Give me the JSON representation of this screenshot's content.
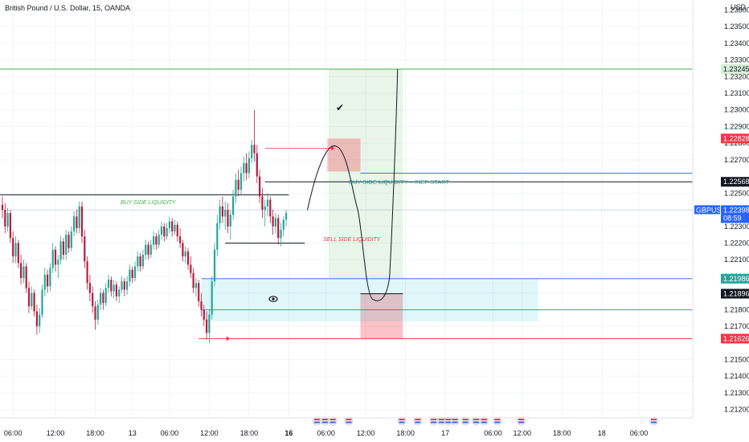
{
  "header": {
    "title": "British Pound / U.S. Dollar, 15, OANDA",
    "currency": "USD"
  },
  "chart_data": {
    "type": "candlestick",
    "symbol": "GBPUSD",
    "ylim": [
      1.2115,
      1.2366
    ],
    "y_ticks": [
      "1.23600",
      "1.23500",
      "1.23400",
      "1.23300",
      "1.23200",
      "1.23100",
      "1.23000",
      "1.22900",
      "1.22800",
      "1.22700",
      "1.22500",
      "1.22400",
      "1.22300",
      "1.22200",
      "1.22100",
      "1.22000",
      "1.21900",
      "1.21800",
      "1.21700",
      "1.21500",
      "1.21400",
      "1.21300",
      "1.21200"
    ],
    "x_ticks": [
      {
        "label": "06:00",
        "i": 4
      },
      {
        "label": "12:00",
        "i": 20
      },
      {
        "label": "18:00",
        "i": 35
      },
      {
        "label": "13",
        "i": 49
      },
      {
        "label": "06:00",
        "i": 63
      },
      {
        "label": "12:00",
        "i": 78
      },
      {
        "label": "18:00",
        "i": 93
      },
      {
        "label": "16",
        "i": 108
      },
      {
        "label": "06:00",
        "i": 122
      },
      {
        "label": "12:00",
        "i": 137
      },
      {
        "label": "18:00",
        "i": 152
      },
      {
        "label": "17",
        "i": 167
      },
      {
        "label": "06:00",
        "i": 185
      },
      {
        "label": "12:00",
        "i": 196
      },
      {
        "label": "18:00",
        "i": 211
      },
      {
        "label": "18",
        "i": 226
      },
      {
        "label": "06:00",
        "i": 240
      }
    ],
    "candles": [
      [
        1.2243,
        1.2248,
        1.2235,
        1.224
      ],
      [
        1.224,
        1.2244,
        1.2226,
        1.223
      ],
      [
        1.223,
        1.2241,
        1.2227,
        1.2238
      ],
      [
        1.2238,
        1.224,
        1.222,
        1.2223
      ],
      [
        1.2223,
        1.2227,
        1.2208,
        1.2212
      ],
      [
        1.2212,
        1.2224,
        1.2208,
        1.222
      ],
      [
        1.222,
        1.2222,
        1.2205,
        1.2208
      ],
      [
        1.2208,
        1.2213,
        1.2195,
        1.2199
      ],
      [
        1.2199,
        1.221,
        1.2196,
        1.2206
      ],
      [
        1.2206,
        1.2208,
        1.219,
        1.2193
      ],
      [
        1.2193,
        1.2197,
        1.2178,
        1.2182
      ],
      [
        1.2182,
        1.2194,
        1.218,
        1.219
      ],
      [
        1.219,
        1.2192,
        1.2176,
        1.2179
      ],
      [
        1.2179,
        1.2183,
        1.2165,
        1.217
      ],
      [
        1.217,
        1.2181,
        1.2166,
        1.2177
      ],
      [
        1.2177,
        1.2195,
        1.2175,
        1.2192
      ],
      [
        1.2192,
        1.2205,
        1.2188,
        1.2201
      ],
      [
        1.2201,
        1.2204,
        1.219,
        1.2194
      ],
      [
        1.2194,
        1.2208,
        1.2191,
        1.2205
      ],
      [
        1.2205,
        1.222,
        1.2202,
        1.2216
      ],
      [
        1.2216,
        1.2218,
        1.2203,
        1.2207
      ],
      [
        1.2207,
        1.2213,
        1.2199,
        1.221
      ],
      [
        1.221,
        1.2224,
        1.2207,
        1.2221
      ],
      [
        1.2221,
        1.2223,
        1.221,
        1.2213
      ],
      [
        1.2213,
        1.2228,
        1.221,
        1.2225
      ],
      [
        1.2225,
        1.2227,
        1.2214,
        1.2217
      ],
      [
        1.2217,
        1.223,
        1.2215,
        1.2227
      ],
      [
        1.2227,
        1.2239,
        1.2224,
        1.2236
      ],
      [
        1.2236,
        1.224,
        1.2226,
        1.2229
      ],
      [
        1.2229,
        1.2245,
        1.2226,
        1.2242
      ],
      [
        1.2242,
        1.2245,
        1.222,
        1.2224
      ],
      [
        1.2224,
        1.2228,
        1.2205,
        1.2209
      ],
      [
        1.2209,
        1.2212,
        1.2192,
        1.2196
      ],
      [
        1.2196,
        1.2201,
        1.2185,
        1.219
      ],
      [
        1.219,
        1.2194,
        1.2178,
        1.2182
      ],
      [
        1.2182,
        1.2185,
        1.2168,
        1.2174
      ],
      [
        1.2174,
        1.2186,
        1.2171,
        1.2183
      ],
      [
        1.2183,
        1.2193,
        1.218,
        1.219
      ],
      [
        1.219,
        1.2192,
        1.218,
        1.2184
      ],
      [
        1.2184,
        1.2196,
        1.2182,
        1.2193
      ],
      [
        1.2193,
        1.2201,
        1.219,
        1.2198
      ],
      [
        1.2198,
        1.22,
        1.2188,
        1.2191
      ],
      [
        1.2191,
        1.2198,
        1.2187,
        1.2195
      ],
      [
        1.2195,
        1.2197,
        1.2185,
        1.2188
      ],
      [
        1.2188,
        1.2194,
        1.2184,
        1.2192
      ],
      [
        1.2192,
        1.22,
        1.219,
        1.2197
      ],
      [
        1.2197,
        1.2199,
        1.2188,
        1.2192
      ],
      [
        1.2192,
        1.22,
        1.2189,
        1.2197
      ],
      [
        1.2197,
        1.2207,
        1.2194,
        1.2204
      ],
      [
        1.2204,
        1.2206,
        1.2196,
        1.2199
      ],
      [
        1.2199,
        1.2209,
        1.2197,
        1.2206
      ],
      [
        1.2206,
        1.2215,
        1.2203,
        1.2212
      ],
      [
        1.2212,
        1.2214,
        1.2203,
        1.2206
      ],
      [
        1.2206,
        1.2216,
        1.2204,
        1.2213
      ],
      [
        1.2213,
        1.2222,
        1.221,
        1.2219
      ],
      [
        1.2219,
        1.2221,
        1.221,
        1.2213
      ],
      [
        1.2213,
        1.2222,
        1.2211,
        1.2219
      ],
      [
        1.2219,
        1.2227,
        1.2216,
        1.2224
      ],
      [
        1.2224,
        1.2226,
        1.2216,
        1.2219
      ],
      [
        1.2219,
        1.2228,
        1.2217,
        1.2225
      ],
      [
        1.2225,
        1.2233,
        1.2222,
        1.223
      ],
      [
        1.223,
        1.2232,
        1.2221,
        1.2224
      ],
      [
        1.2224,
        1.2232,
        1.2222,
        1.2229
      ],
      [
        1.2229,
        1.2236,
        1.2226,
        1.2233
      ],
      [
        1.2233,
        1.2235,
        1.2224,
        1.2227
      ],
      [
        1.2227,
        1.2234,
        1.2225,
        1.2231
      ],
      [
        1.2231,
        1.2233,
        1.2221,
        1.2224
      ],
      [
        1.2224,
        1.2229,
        1.2217,
        1.222
      ],
      [
        1.222,
        1.2222,
        1.2209,
        1.2212
      ],
      [
        1.2212,
        1.2218,
        1.2208,
        1.2215
      ],
      [
        1.2215,
        1.2217,
        1.2204,
        1.2207
      ],
      [
        1.2207,
        1.2212,
        1.2199,
        1.2202
      ],
      [
        1.2202,
        1.2205,
        1.219,
        1.2193
      ],
      [
        1.2193,
        1.2199,
        1.2188,
        1.2196
      ],
      [
        1.2196,
        1.2198,
        1.2182,
        1.2185
      ],
      [
        1.2185,
        1.219,
        1.2176,
        1.218
      ],
      [
        1.218,
        1.2183,
        1.217,
        1.2174
      ],
      [
        1.2174,
        1.2179,
        1.2162,
        1.2166
      ],
      [
        1.2166,
        1.218,
        1.216,
        1.2177
      ],
      [
        1.2177,
        1.22,
        1.2174,
        1.2197
      ],
      [
        1.2197,
        1.222,
        1.2194,
        1.2216
      ],
      [
        1.2216,
        1.2237,
        1.2212,
        1.2232
      ],
      [
        1.2232,
        1.2246,
        1.2228,
        1.2242
      ],
      [
        1.2242,
        1.2248,
        1.2232,
        1.2236
      ],
      [
        1.2236,
        1.2245,
        1.2228,
        1.224
      ],
      [
        1.224,
        1.2244,
        1.2226,
        1.223
      ],
      [
        1.223,
        1.224,
        1.2222,
        1.2237
      ],
      [
        1.2237,
        1.2252,
        1.2234,
        1.2248
      ],
      [
        1.2248,
        1.2262,
        1.2244,
        1.2258
      ],
      [
        1.2258,
        1.2264,
        1.2248,
        1.2252
      ],
      [
        1.2252,
        1.2266,
        1.2249,
        1.2262
      ],
      [
        1.2262,
        1.2272,
        1.2257,
        1.2268
      ],
      [
        1.2268,
        1.2274,
        1.2258,
        1.2262
      ],
      [
        1.2262,
        1.2275,
        1.2259,
        1.2271
      ],
      [
        1.2271,
        1.2282,
        1.2268,
        1.2279
      ],
      [
        1.2279,
        1.23,
        1.2269,
        1.2274
      ],
      [
        1.2274,
        1.2279,
        1.2256,
        1.226
      ],
      [
        1.226,
        1.2264,
        1.2244,
        1.2248
      ],
      [
        1.2248,
        1.2253,
        1.2235,
        1.224
      ],
      [
        1.224,
        1.2246,
        1.223,
        1.2242
      ],
      [
        1.2242,
        1.225,
        1.2236,
        1.2246
      ],
      [
        1.2246,
        1.2248,
        1.2232,
        1.2236
      ],
      [
        1.2236,
        1.224,
        1.2225,
        1.223
      ],
      [
        1.223,
        1.2238,
        1.2226,
        1.2235
      ],
      [
        1.2235,
        1.2237,
        1.2219,
        1.2223
      ],
      [
        1.2223,
        1.2232,
        1.2218,
        1.2228
      ],
      [
        1.2228,
        1.2236,
        1.2224,
        1.2234
      ],
      [
        1.2234,
        1.224,
        1.223,
        1.2238
      ]
    ],
    "levels": [
      {
        "price": 1.23245,
        "color": "#4caf50",
        "label": "1.23245"
      },
      {
        "price": 1.22568,
        "color": "#131722",
        "label": "1.22568"
      },
      {
        "price": 1.22398,
        "color": "#2962ff",
        "label": "1.22398"
      },
      {
        "price": 1.21896,
        "color": "#131722",
        "label": "1.21896"
      },
      {
        "price": 1.21626,
        "color": "#f23645",
        "label": "1.21626"
      }
    ],
    "price_tags": [
      {
        "label": "1.23245",
        "bg": "#d6ecd6",
        "fg": "#131722",
        "price": 1.23245
      },
      {
        "label": "1.22828",
        "bg": "#f23645",
        "fg": "#ffffff",
        "price": 1.22828
      },
      {
        "label": "1.22568",
        "bg": "#131722",
        "fg": "#ffffff",
        "price": 1.22568
      },
      {
        "label": "1.21986",
        "bg": "#26a69a",
        "fg": "#ffffff",
        "price": 1.21986
      },
      {
        "label": "1.21896",
        "bg": "#131722",
        "fg": "#ffffff",
        "price": 1.21896
      },
      {
        "label": "1.21626",
        "bg": "#f23645",
        "fg": "#ffffff",
        "price": 1.21626
      }
    ],
    "symbol_tag": {
      "symbol": "GBPUSD",
      "price": "1.22398",
      "countdown": "08:59"
    },
    "annotations": {
      "buy_side": "BUY SIDE LIQUIDITY",
      "sell_side": "SELL SIDE LIQUIDITY",
      "buy_side_inef": "BUY SIDE LIQUIDITY + INEF START",
      "checkmark": "✔"
    },
    "colors": {
      "up": "#26a69a",
      "down": "#b71c3c"
    }
  }
}
